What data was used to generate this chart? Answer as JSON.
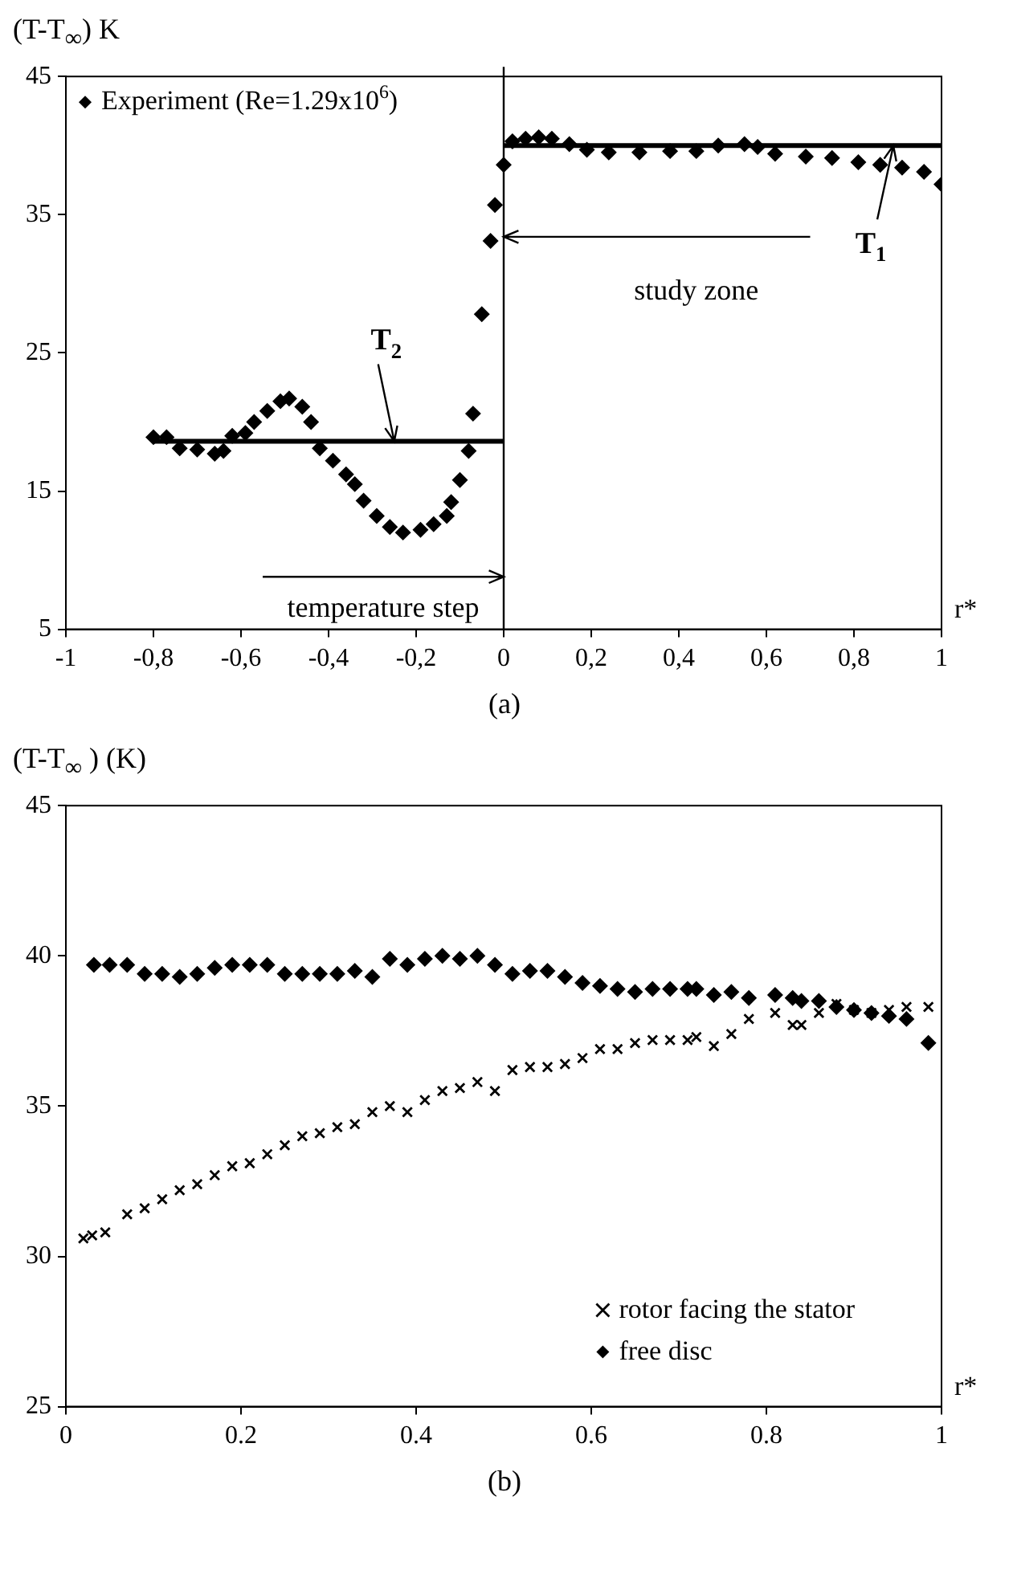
{
  "chart_data": [
    {
      "type": "scatter",
      "ylabel": "(T-T$_{∞}$) K",
      "xlabel": "r*",
      "legend": "top left",
      "grid": false,
      "xlim": [
        -1,
        1
      ],
      "xticks": [
        {
          "value": -1,
          "label": "-1"
        },
        {
          "value": -0.8,
          "label": "-0,8"
        },
        {
          "value": -0.6,
          "label": "-0,6"
        },
        {
          "value": -0.4,
          "label": "-0,4"
        },
        {
          "value": -0.2,
          "label": "-0,2"
        },
        0,
        {
          "value": 0.2,
          "label": "0,2"
        },
        {
          "value": 0.4,
          "label": "0,4"
        },
        {
          "value": 0.6,
          "label": "0,6"
        },
        {
          "value": 0.8,
          "label": "0,8"
        },
        1
      ],
      "ylim": [
        5,
        45
      ],
      "yticks": [
        5,
        15,
        25,
        35,
        45
      ],
      "ref_lines": [
        {
          "axis": "x",
          "value": 0,
          "color": "#000000"
        }
      ],
      "annotations": [
        {
          "text": "T$_{2}$",
          "x": -0.25,
          "y": 18.6
        },
        {
          "text": "T$_{1}$",
          "x": 0.89,
          "y": 40
        },
        "study zone",
        {
          "text": "temperature step",
          "x": 0,
          "y": 8.8
        },
        "(a)"
      ],
      "series": [
        {
          "name": "Experiment (Re=1.29x10$^{6}$)",
          "type": "scatter",
          "marker": "diamond",
          "color": "#000000",
          "x": [
            -0.8,
            -0.77,
            -0.74,
            -0.7,
            -0.66,
            -0.64,
            -0.62,
            -0.59,
            -0.57,
            -0.54,
            -0.51,
            -0.49,
            -0.46,
            -0.44,
            -0.42,
            -0.39,
            -0.36,
            -0.34,
            -0.32,
            -0.29,
            -0.26,
            -0.23,
            -0.19,
            -0.16,
            -0.13,
            -0.12,
            -0.1,
            -0.08,
            -0.07,
            -0.05,
            -0.03,
            -0.02,
            0,
            0.02,
            0.05,
            0.08,
            0.11,
            0.15,
            0.19,
            0.24,
            0.31,
            0.38,
            0.44,
            0.49,
            0.55,
            0.58,
            0.62,
            0.69,
            0.75,
            0.81,
            0.86,
            0.91,
            0.96,
            1
          ],
          "values": [
            18.9,
            18.9,
            18.1,
            18.0,
            17.7,
            17.9,
            19.0,
            19.2,
            20.0,
            20.8,
            21.5,
            21.7,
            21.1,
            20.0,
            18.1,
            17.2,
            16.2,
            15.5,
            14.3,
            13.2,
            12.4,
            12.0,
            12.2,
            12.6,
            13.2,
            14.2,
            15.8,
            17.9,
            20.6,
            27.8,
            33.1,
            35.7,
            38.6,
            40.3,
            40.5,
            40.6,
            40.5,
            40.1,
            39.7,
            39.5,
            39.5,
            39.6,
            39.6,
            40.0,
            40.1,
            39.9,
            39.4,
            39.2,
            39.1,
            38.8,
            38.6,
            38.4,
            38.1,
            37.2
          ]
        },
        {
          "type": "line",
          "marker": "none",
          "color": "#000000",
          "x": [
            0,
            1
          ],
          "values": [
            40,
            40
          ]
        },
        {
          "type": "line",
          "marker": "none",
          "color": "#000000",
          "x": [
            -0.8,
            0
          ],
          "values": [
            18.6,
            18.6
          ]
        }
      ]
    },
    {
      "type": "scatter",
      "ylabel": "(T-T$_{∞}$ ) (K)",
      "xlabel": "r*",
      "legend": "bottom right",
      "grid": false,
      "xlim": [
        0,
        1
      ],
      "xticks": [
        0,
        0.2,
        0.4,
        0.6,
        0.8,
        1
      ],
      "ylim": [
        25,
        45
      ],
      "yticks": [
        25,
        30,
        35,
        40,
        45
      ],
      "annotations": [
        "(b)"
      ],
      "series": [
        {
          "name": "rotor facing the stator",
          "type": "scatter",
          "marker": "cross",
          "color": "#000000",
          "x": [
            0.02,
            0.03,
            0.045,
            0.07,
            0.09,
            0.11,
            0.13,
            0.15,
            0.17,
            0.19,
            0.21,
            0.23,
            0.25,
            0.27,
            0.29,
            0.31,
            0.33,
            0.35,
            0.37,
            0.39,
            0.41,
            0.43,
            0.45,
            0.47,
            0.49,
            0.51,
            0.53,
            0.55,
            0.57,
            0.59,
            0.61,
            0.63,
            0.65,
            0.67,
            0.69,
            0.71,
            0.72,
            0.74,
            0.76,
            0.78,
            0.81,
            0.83,
            0.84,
            0.86,
            0.88,
            0.9,
            0.92,
            0.94,
            0.96,
            0.985
          ],
          "values": [
            30.6,
            30.7,
            30.8,
            31.4,
            31.6,
            31.9,
            32.2,
            32.4,
            32.7,
            33.0,
            33.1,
            33.4,
            33.7,
            34.0,
            34.1,
            34.3,
            34.4,
            34.8,
            35.0,
            34.8,
            35.2,
            35.5,
            35.6,
            35.8,
            35.5,
            36.2,
            36.3,
            36.3,
            36.4,
            36.6,
            36.9,
            36.9,
            37.1,
            37.2,
            37.2,
            37.2,
            37.3,
            37.0,
            37.4,
            37.9,
            38.1,
            37.7,
            37.7,
            38.1,
            38.4,
            38.2,
            38.1,
            38.2,
            38.3,
            38.3
          ]
        },
        {
          "name": "free disc",
          "type": "scatter",
          "marker": "diamond",
          "color": "#000000",
          "x": [
            0.032,
            0.05,
            0.07,
            0.09,
            0.11,
            0.13,
            0.15,
            0.17,
            0.19,
            0.21,
            0.23,
            0.25,
            0.27,
            0.29,
            0.31,
            0.33,
            0.35,
            0.37,
            0.39,
            0.41,
            0.43,
            0.45,
            0.47,
            0.49,
            0.51,
            0.53,
            0.55,
            0.57,
            0.59,
            0.61,
            0.63,
            0.65,
            0.67,
            0.69,
            0.71,
            0.72,
            0.74,
            0.76,
            0.78,
            0.81,
            0.83,
            0.84,
            0.86,
            0.88,
            0.9,
            0.92,
            0.94,
            0.96,
            0.985
          ],
          "values": [
            39.7,
            39.7,
            39.7,
            39.4,
            39.4,
            39.3,
            39.4,
            39.6,
            39.7,
            39.7,
            39.7,
            39.4,
            39.4,
            39.4,
            39.4,
            39.5,
            39.3,
            39.9,
            39.7,
            39.9,
            40.0,
            39.9,
            40.0,
            39.7,
            39.4,
            39.5,
            39.5,
            39.3,
            39.1,
            39.0,
            38.9,
            38.8,
            38.9,
            38.9,
            38.9,
            38.9,
            38.7,
            38.8,
            38.6,
            38.7,
            38.6,
            38.5,
            38.5,
            38.3,
            38.2,
            38.1,
            38.0,
            37.9,
            37.1
          ]
        }
      ]
    }
  ]
}
